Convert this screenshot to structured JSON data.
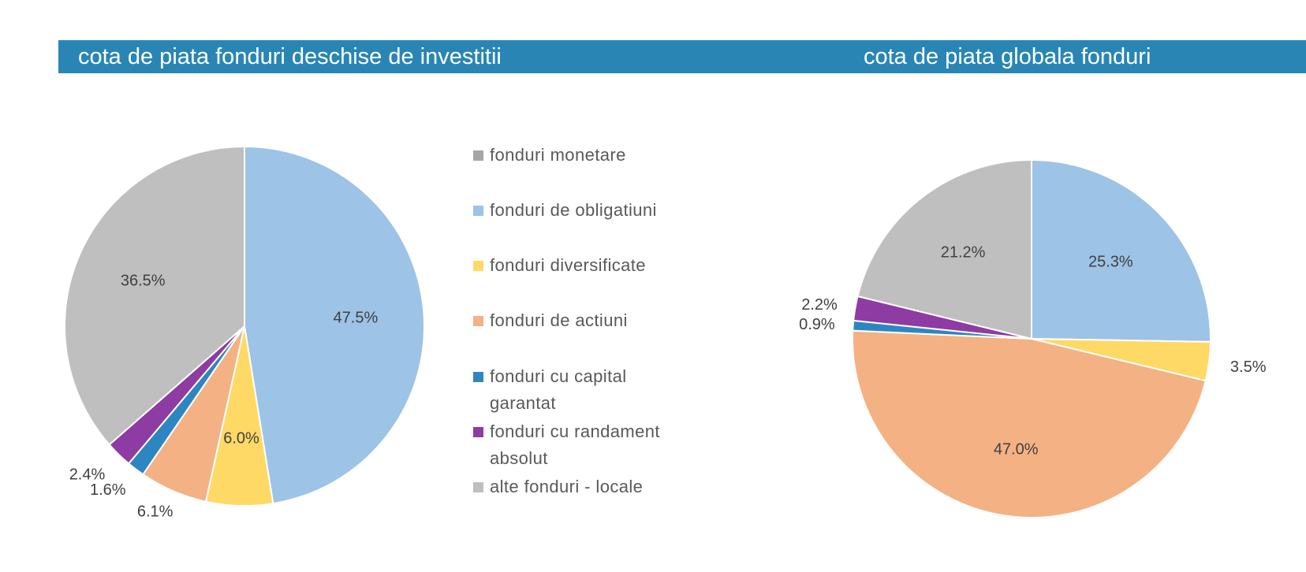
{
  "colors": {
    "title_bar": "#2986b4",
    "fonduri_monetare": "#a5a5a5",
    "fonduri_de_obligatiuni": "#9dc3e6",
    "fonduri_diversificate": "#ffd966",
    "fonduri_de_actiuni": "#f4b183",
    "fonduri_cu_capital_garantat": "#2e86c1",
    "fonduri_cu_randament_absolut": "#8e3ba3",
    "alte_fonduri_locale": "#bfbfbf"
  },
  "legend": {
    "items": [
      {
        "label": "fonduri monetare",
        "color": "#a5a5a5"
      },
      {
        "label": "fonduri de obligatiuni",
        "color": "#9dc3e6"
      },
      {
        "label": "fonduri diversificate",
        "color": "#ffd966"
      },
      {
        "label": "fonduri de actiuni",
        "color": "#f4b183"
      },
      {
        "label": "fonduri cu capital garantat",
        "color": "#2e86c1"
      },
      {
        "label": "fonduri cu randament absolut",
        "color": "#8e3ba3"
      },
      {
        "label": "alte fonduri - locale",
        "color": "#bfbfbf"
      }
    ]
  },
  "chart_data": [
    {
      "type": "pie",
      "title": "cota de piata fonduri deschise de investitii",
      "legend_position": "right",
      "slices": [
        {
          "category": "fonduri de obligatiuni",
          "value": 47.5,
          "label": "47.5%",
          "color": "#9dc3e6"
        },
        {
          "category": "fonduri diversificate",
          "value": 6.0,
          "label": "6.0%",
          "color": "#ffd966"
        },
        {
          "category": "fonduri de actiuni",
          "value": 6.1,
          "label": "6.1%",
          "color": "#f4b183"
        },
        {
          "category": "fonduri cu capital garantat",
          "value": 1.6,
          "label": "1.6%",
          "color": "#2e86c1"
        },
        {
          "category": "fonduri cu randament absolut",
          "value": 2.4,
          "label": "2.4%",
          "color": "#8e3ba3"
        },
        {
          "category": "alte fonduri - locale",
          "value": 36.5,
          "label": "36.5%",
          "color": "#bfbfbf"
        }
      ]
    },
    {
      "type": "pie",
      "title": "cota de piata globala fonduri",
      "slices": [
        {
          "category": "fonduri de obligatiuni",
          "value": 25.3,
          "label": "25.3%",
          "color": "#9dc3e6"
        },
        {
          "category": "fonduri diversificate",
          "value": 3.5,
          "label": "3.5%",
          "color": "#ffd966"
        },
        {
          "category": "fonduri de actiuni",
          "value": 47.0,
          "label": "47.0%",
          "color": "#f4b183"
        },
        {
          "category": "fonduri cu capital garantat",
          "value": 0.9,
          "label": "0.9%",
          "color": "#2e86c1"
        },
        {
          "category": "fonduri cu randament absolut",
          "value": 2.2,
          "label": "2.2%",
          "color": "#8e3ba3"
        },
        {
          "category": "alte fonduri - locale",
          "value": 21.2,
          "label": "21.2%",
          "color": "#bfbfbf"
        }
      ]
    }
  ]
}
